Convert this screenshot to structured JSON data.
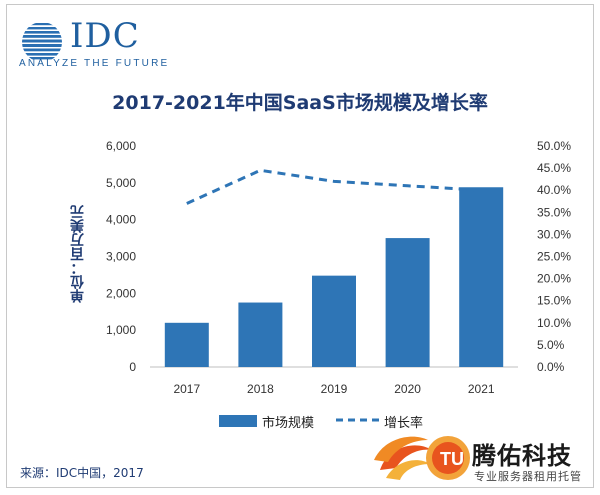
{
  "header": {
    "logo_text": "IDC",
    "logo_tagline": "ANALYZE THE FUTURE"
  },
  "chart_data": {
    "type": "bar",
    "title": "2017-2021年中国SaaS市场规模及增长率",
    "ylabel": "单位：百万美元",
    "ylabel_right": "",
    "categories": [
      "2017",
      "2018",
      "2019",
      "2020",
      "2021"
    ],
    "ylim": [
      0,
      6000
    ],
    "y2lim": [
      0,
      50
    ],
    "yticks": [
      "0",
      "1,000",
      "2,000",
      "3,000",
      "4,000",
      "5,000",
      "6,000"
    ],
    "y2ticks": [
      "0.0%",
      "5.0%",
      "10.0%",
      "15.0%",
      "20.0%",
      "25.0%",
      "30.0%",
      "35.0%",
      "40.0%",
      "45.0%",
      "50.0%"
    ],
    "grid": false,
    "legend_placement": "bottom",
    "series": [
      {
        "name": "市场规模",
        "type": "bar",
        "axis": "left",
        "color": "#2e75b6",
        "values": [
          1200,
          1750,
          2480,
          3500,
          4880
        ]
      },
      {
        "name": "增长率",
        "type": "line",
        "axis": "right",
        "style": "dashed",
        "color": "#2e75b6",
        "values": [
          37.0,
          44.5,
          42.0,
          41.0,
          40.0
        ]
      }
    ]
  },
  "footer": {
    "source": "来源：IDC中国，2017",
    "brand_name": "腾佑科技",
    "brand_tagline": "专业服务器租用托管"
  }
}
